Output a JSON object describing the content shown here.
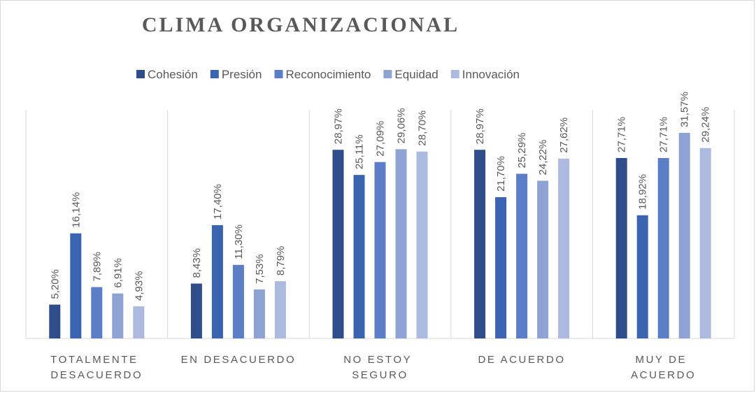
{
  "chart_data": {
    "type": "bar",
    "title": "CLIMA ORGANIZACIONAL",
    "categories": [
      "TOTALMENTE DESACUERDO",
      "EN DESACUERDO",
      "NO ESTOY SEGURO",
      "DE ACUERDO",
      "MUY DE ACUERDO"
    ],
    "series": [
      {
        "name": "Cohesión",
        "color": "#2f4d8a",
        "values": [
          5.2,
          8.43,
          28.97,
          28.97,
          27.71
        ],
        "value_labels": [
          "5,20%",
          "8,43%",
          "28,97%",
          "28,97%",
          "27,71%"
        ]
      },
      {
        "name": "Presión",
        "color": "#3a63b0",
        "values": [
          16.14,
          17.4,
          25.11,
          21.7,
          18.92
        ],
        "value_labels": [
          "16,14%",
          "17,40%",
          "25,11%",
          "21,70%",
          "18,92%"
        ]
      },
      {
        "name": "Reconocimiento",
        "color": "#5b7ec6",
        "values": [
          7.89,
          11.3,
          27.09,
          25.29,
          27.71
        ],
        "value_labels": [
          "7,89%",
          "11,30%",
          "27,09%",
          "25,29%",
          "27,71%"
        ]
      },
      {
        "name": "Equidad",
        "color": "#8ea2d4",
        "values": [
          6.91,
          7.53,
          29.06,
          24.22,
          31.57
        ],
        "value_labels": [
          "6,91%",
          "7,53%",
          "29,06%",
          "24,22%",
          "31,57%"
        ]
      },
      {
        "name": "Innovación",
        "color": "#adbae0",
        "values": [
          4.93,
          8.79,
          28.7,
          27.62,
          29.24
        ],
        "value_labels": [
          "4,93%",
          "8,79%",
          "28,70%",
          "27,62%",
          "29,24%"
        ]
      }
    ],
    "legend": "top"
  }
}
